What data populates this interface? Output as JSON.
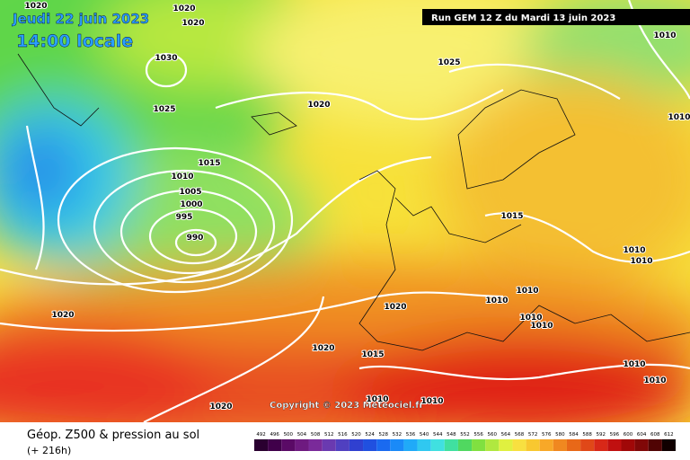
{
  "header": {
    "date": "Jeudi 22 juin 2023",
    "time": "14:00 locale",
    "run": "Run GEM 12 Z du Mardi 13 juin 2023"
  },
  "isobar_labels": [
    1020,
    1020,
    1020,
    1030,
    1025,
    1020,
    1025,
    1015,
    1010,
    1005,
    1000,
    995,
    990,
    1015,
    1010,
    1010,
    1010,
    1010,
    1010,
    1010,
    1020,
    1020,
    1020,
    1015,
    1010,
    1010,
    1010,
    1010,
    1010,
    1010,
    1020
  ],
  "copyright": "Copyright © 2023 Meteociel.fr",
  "footer": {
    "title": "Géop. Z500 & pression au sol",
    "lead": "(+ 216h)"
  },
  "legend": [
    492,
    496,
    500,
    504,
    508,
    512,
    516,
    520,
    524,
    528,
    532,
    536,
    540,
    544,
    548,
    552,
    556,
    560,
    564,
    568,
    572,
    576,
    580,
    584,
    588,
    592,
    596,
    600,
    604,
    608,
    612
  ]
}
